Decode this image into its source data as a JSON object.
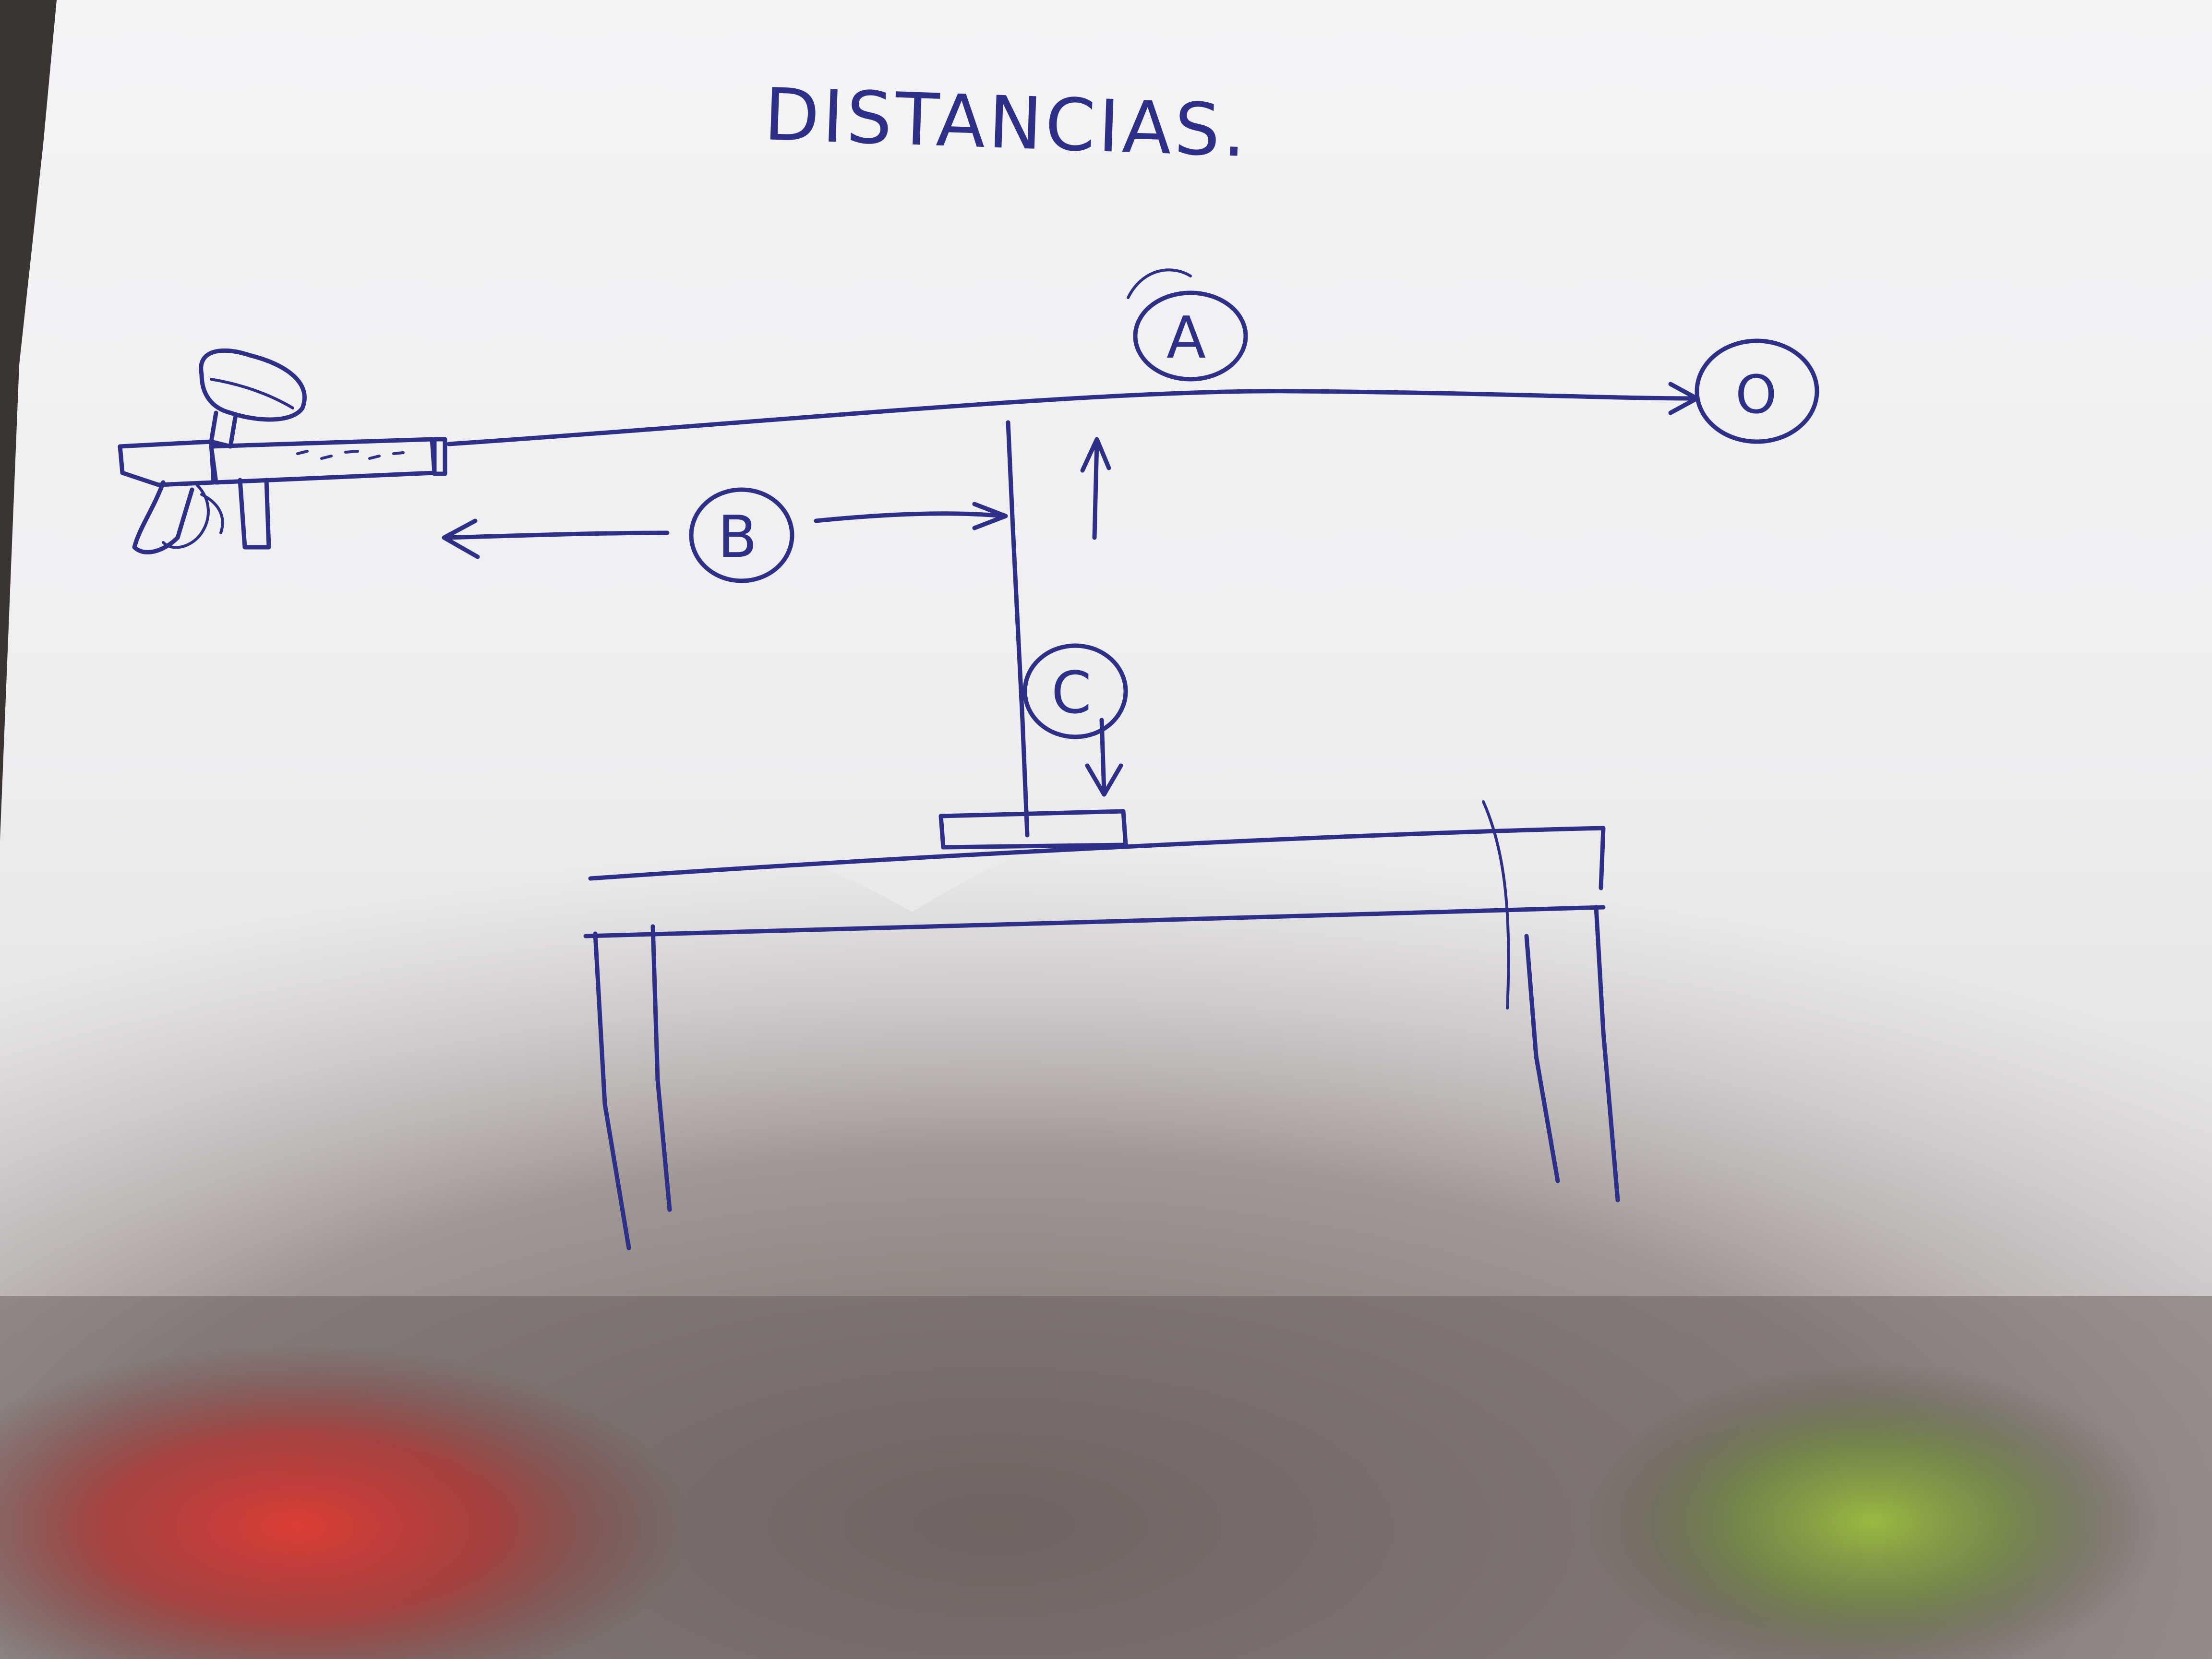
{
  "photo": {
    "subject": "hand-drawn sketch on white paper in blue ink",
    "colors": {
      "ink": "#2e2f86",
      "paper": "#f3f2f4",
      "shadow": "#7f7571",
      "red_light": "#d8322e",
      "green_light": "#8fb03c",
      "background": "#3a3533"
    }
  },
  "sketch": {
    "title": "DISTANCIAS.",
    "label_a": "A",
    "label_b": "B",
    "label_c": "C",
    "target_mark": "O"
  }
}
